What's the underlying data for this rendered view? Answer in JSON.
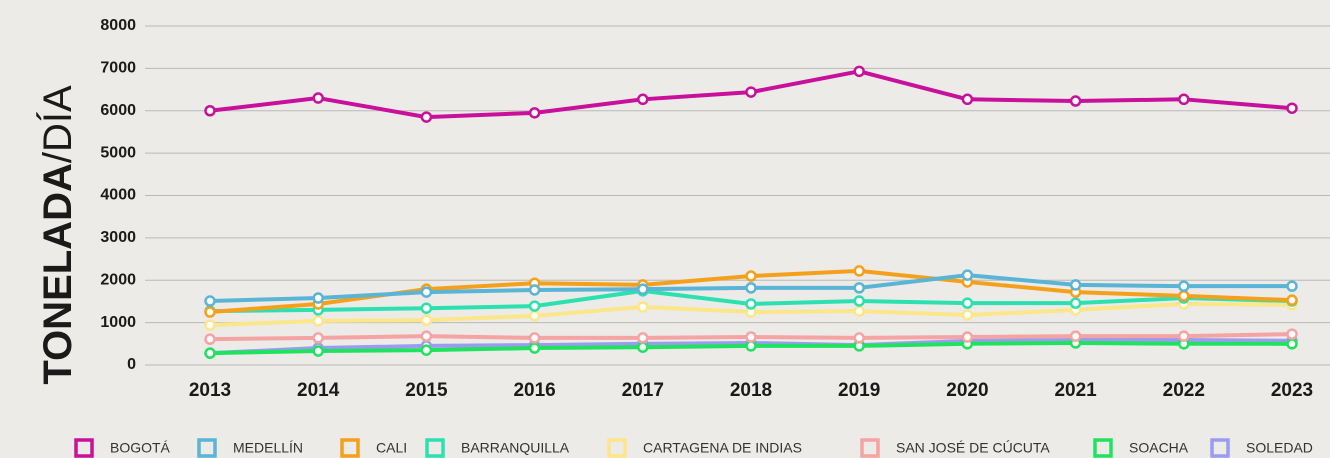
{
  "chart_data": {
    "type": "line",
    "y_label": [
      "TONELADA",
      "/DÍA"
    ],
    "categories": [
      "2013",
      "2014",
      "2015",
      "2016",
      "2017",
      "2018",
      "2019",
      "2020",
      "2021",
      "2022",
      "2023"
    ],
    "ylim": [
      0,
      8000
    ],
    "yticks": [
      0,
      1000,
      2000,
      3000,
      4000,
      5000,
      6000,
      7000,
      8000
    ],
    "grid": true,
    "legend": "bottom",
    "series": [
      {
        "name": "BOGOTÁ",
        "color": "#c8109b",
        "values": [
          6000,
          6300,
          5850,
          5950,
          6270,
          6440,
          6930,
          6270,
          6230,
          6270,
          6060
        ]
      },
      {
        "name": "MEDELLÍN",
        "color": "#5ab4d6",
        "values": [
          1510,
          1580,
          1720,
          1770,
          1790,
          1820,
          1820,
          2120,
          1890,
          1860,
          1860
        ]
      },
      {
        "name": "CALI",
        "color": "#f5a01a",
        "values": [
          1250,
          1440,
          1790,
          1930,
          1890,
          2100,
          2220,
          1960,
          1720,
          1630,
          1530
        ]
      },
      {
        "name": "BARRANQUILLA",
        "color": "#2de0b0",
        "values": [
          1270,
          1300,
          1340,
          1390,
          1750,
          1440,
          1510,
          1460,
          1460,
          1580,
          1510
        ]
      },
      {
        "name": "CARTAGENA DE INDIAS",
        "color": "#fce68a",
        "values": [
          940,
          1040,
          1060,
          1160,
          1370,
          1250,
          1270,
          1180,
          1300,
          1440,
          1420
        ]
      },
      {
        "name": "SAN JOSÉ DE CÚCUTA",
        "color": "#f5a3a3",
        "values": [
          610,
          640,
          680,
          640,
          640,
          660,
          640,
          660,
          680,
          680,
          730
        ]
      },
      {
        "name": "SOACHA",
        "color": "#1fe35f",
        "values": [
          280,
          330,
          350,
          400,
          420,
          450,
          450,
          500,
          520,
          500,
          500
        ]
      },
      {
        "name": "SOLEDAD",
        "color": "#9b9bf0",
        "values": [
          280,
          400,
          450,
          470,
          500,
          520,
          470,
          570,
          590,
          590,
          570
        ]
      }
    ]
  }
}
